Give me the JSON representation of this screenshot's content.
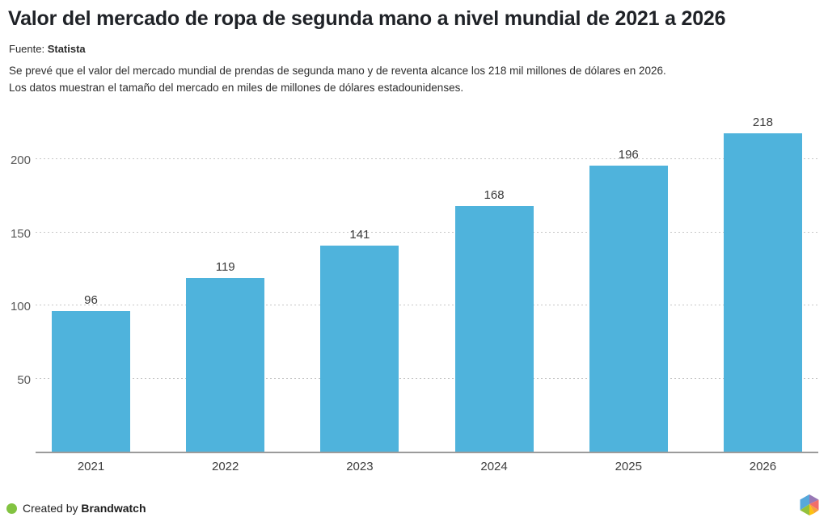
{
  "header": {
    "title": "Valor del mercado de ropa de segunda mano a nivel mundial de 2021 a 2026",
    "source_label": "Fuente: ",
    "source_name": "Statista",
    "description_line1": "Se prevé que el valor del mercado mundial de prendas de segunda mano y de reventa alcance los 218 mil millones de dólares en 2026.",
    "description_line2": "Los datos muestran el tamaño del mercado en miles de millones de dólares estadounidenses."
  },
  "chart_data": {
    "type": "bar",
    "categories": [
      "2021",
      "2022",
      "2023",
      "2024",
      "2025",
      "2026"
    ],
    "values": [
      96,
      119,
      141,
      168,
      196,
      218
    ],
    "title": "Valor del mercado de ropa de segunda mano a nivel mundial de 2021 a 2026",
    "xlabel": "",
    "ylabel": "",
    "yticks": [
      50,
      100,
      150,
      200
    ],
    "ylim": [
      0,
      230
    ],
    "grid": "horizontal-dotted",
    "legend": "none",
    "bar_color": "#4fb3dc",
    "gridline_color": "#c6c6c6",
    "axis_line_color": "#9b9b9b"
  },
  "footer": {
    "created_by_prefix": "Created by ",
    "created_by_brand": "Brandwatch",
    "dot_color": "#82c341"
  },
  "icons": {
    "green_dot": "brandwatch-green-dot",
    "logo": "brandwatch-hexagon-logo"
  }
}
